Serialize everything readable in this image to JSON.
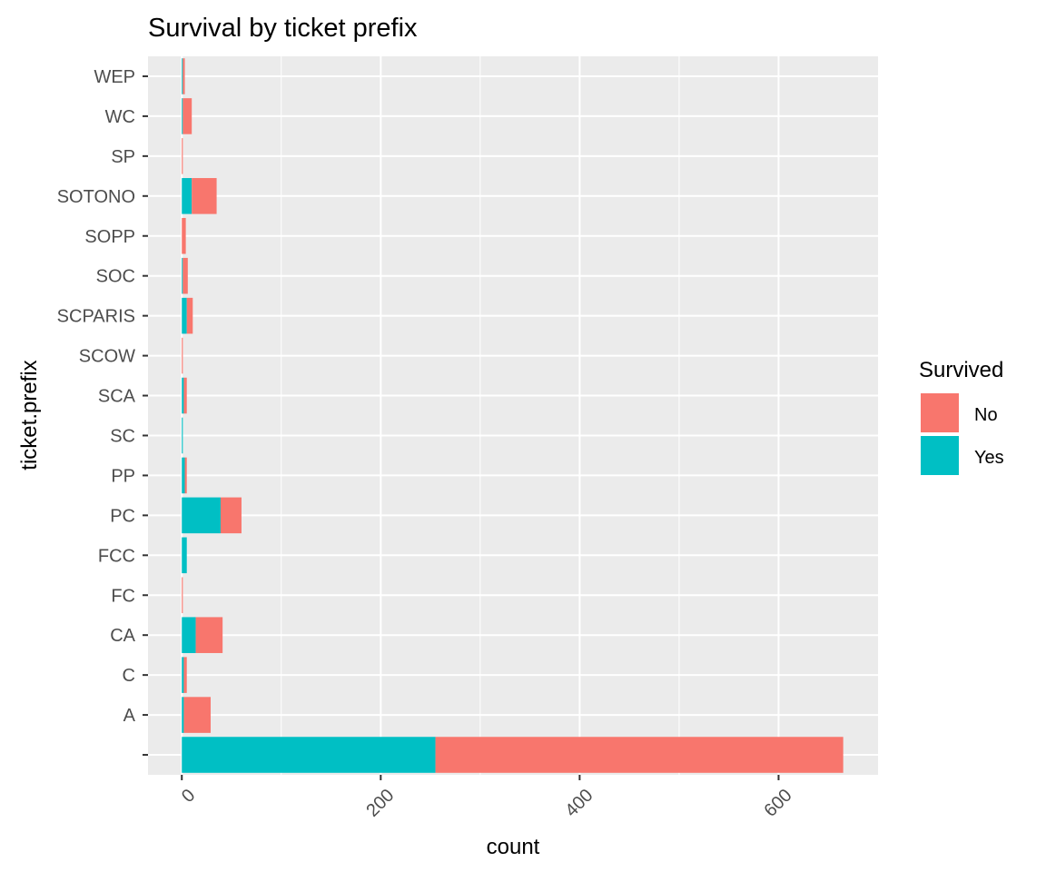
{
  "chart_data": {
    "type": "bar",
    "orientation": "horizontal",
    "stacked": true,
    "title": "Survival by ticket prefix",
    "xlabel": "count",
    "ylabel": "ticket.prefix",
    "categories": [
      "",
      "A",
      "C",
      "CA",
      "FC",
      "FCC",
      "PC",
      "PP",
      "SC",
      "SCA",
      "SCOW",
      "SCPARIS",
      "SOC",
      "SOPP",
      "SOTONO",
      "SP",
      "WC",
      "WEP"
    ],
    "series": [
      {
        "name": "Yes",
        "color": "#00BFC4",
        "values": [
          255,
          2,
          2,
          14,
          0,
          5,
          39,
          3,
          1,
          2,
          0,
          5,
          1,
          0,
          10,
          0,
          1,
          1
        ]
      },
      {
        "name": "No",
        "color": "#F8766D",
        "values": [
          410,
          27,
          3,
          27,
          1,
          0,
          21,
          2,
          0,
          3,
          1,
          6,
          5,
          4,
          25,
          1,
          9,
          2
        ]
      }
    ],
    "legend": {
      "title": "Survived",
      "entries": [
        "No",
        "Yes"
      ],
      "placement": "right"
    },
    "xlim": [
      -34,
      700
    ],
    "xticks": [
      0,
      200,
      400,
      600
    ],
    "grid": true,
    "panel_background": "#EBEBEB",
    "grid_color": "#FFFFFF"
  }
}
